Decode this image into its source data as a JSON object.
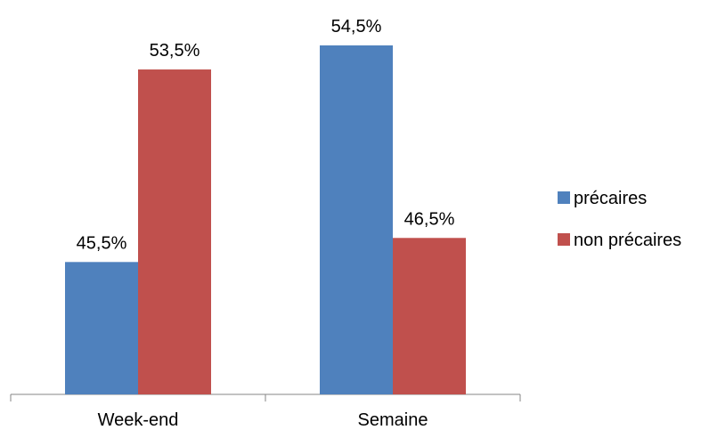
{
  "chart_data": {
    "type": "bar",
    "categories": [
      "Week-end",
      "Semaine"
    ],
    "series": [
      {
        "name": "précaires",
        "values": [
          45.5,
          54.5
        ],
        "labels": [
          "45,5%",
          "54,5%"
        ],
        "color": "#4F81BD"
      },
      {
        "name": "non précaires",
        "values": [
          53.5,
          46.5
        ],
        "labels": [
          "53,5%",
          "46,5%"
        ],
        "color": "#C0504D"
      }
    ],
    "ylim": [
      40,
      55
    ],
    "grid": false,
    "legend_position": "right",
    "title": "",
    "xlabel": "",
    "ylabel": ""
  }
}
